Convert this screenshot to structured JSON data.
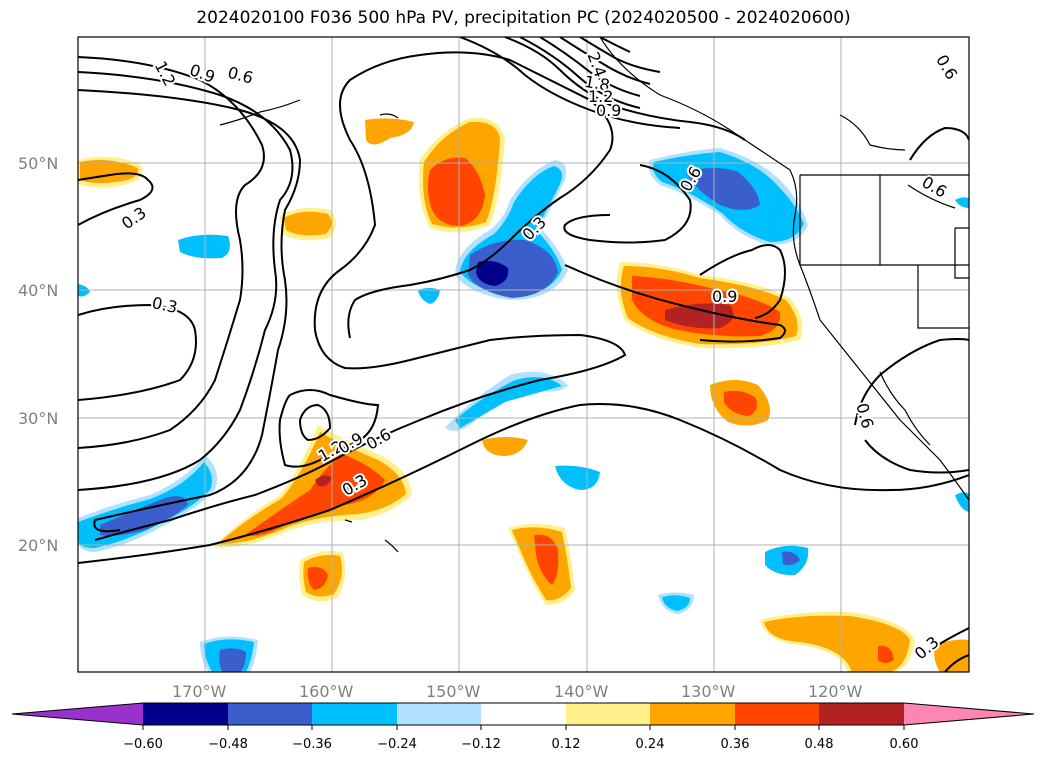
{
  "title": "2024020100 F036 500 hPa PV, precipitation PC (2024020500 - 2024020600)",
  "lat_labels": [
    "50°N",
    "40°N",
    "30°N",
    "20°N"
  ],
  "lon_labels": [
    "170°W",
    "160°W",
    "150°W",
    "140°W",
    "130°W",
    "120°W"
  ],
  "colorbar": {
    "ticks": [
      "−0.60",
      "−0.48",
      "−0.36",
      "−0.24",
      "−0.12",
      "0.12",
      "0.24",
      "0.36",
      "0.48",
      "0.60"
    ],
    "colors": [
      "#9932cc",
      "#00008b",
      "#3a5fcd",
      "#00bfff",
      "#b0e2ff",
      "#ffffff",
      "#fff08a",
      "#ffa500",
      "#ff4500",
      "#b22222",
      "#ff86b4"
    ]
  },
  "contour_labels": [
    "1.2",
    "0.9",
    "0.6",
    "0.3",
    "0.3",
    "0.3",
    "2.4",
    "1.8",
    "1.2",
    "0.9",
    "0.6",
    "0.6",
    "0.9",
    "0.6",
    "0.6",
    "1.2",
    "0.9",
    "0.6",
    "0.3",
    "0.3"
  ],
  "colors": {
    "grid": "#b0b0b0",
    "contour": "#000000",
    "axis_label": "#808080"
  }
}
